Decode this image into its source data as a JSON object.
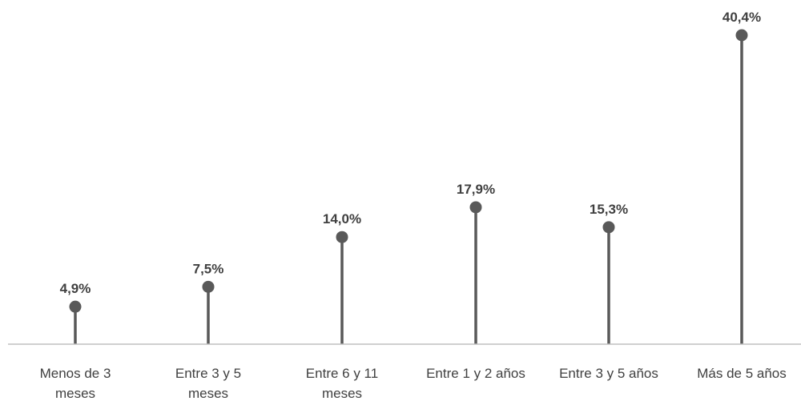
{
  "chart_data": {
    "type": "lollipop",
    "categories": [
      [
        "Menos de 3",
        "meses"
      ],
      [
        "Entre 3 y 5",
        "meses"
      ],
      [
        "Entre 6 y 11",
        "meses"
      ],
      [
        "Entre 1 y 2 años"
      ],
      [
        "Entre 3 y 5 años"
      ],
      [
        "Más de 5 años"
      ]
    ],
    "values": [
      4.9,
      7.5,
      14.0,
      17.9,
      15.3,
      40.4
    ],
    "value_labels": [
      "4,9%",
      "7,5%",
      "14,0%",
      "17,9%",
      "15,3%",
      "40,4%"
    ],
    "title": "",
    "xlabel": "",
    "ylabel": "",
    "ylim": [
      0,
      40.4
    ],
    "grid": false,
    "legend": "none",
    "colors": {
      "stem": "#595959",
      "marker": "#595959",
      "axis": "#bfbfbf",
      "text": "#404040"
    }
  }
}
